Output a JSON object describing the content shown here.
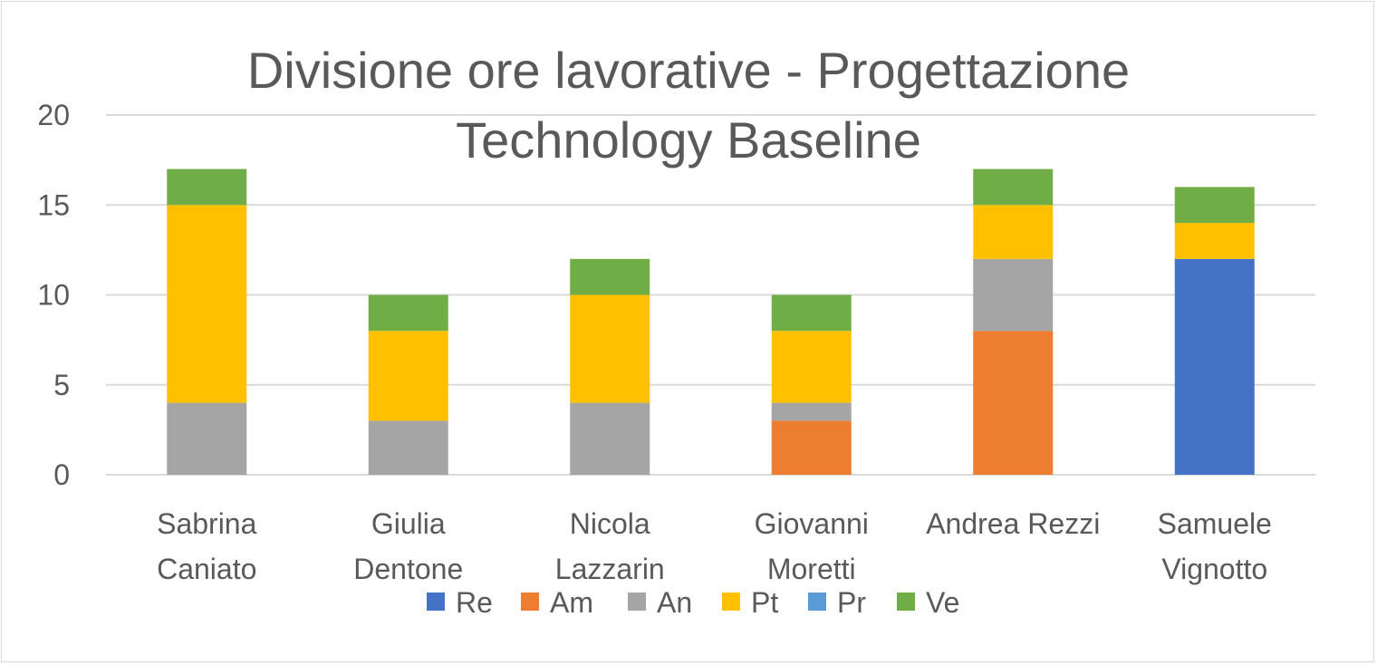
{
  "chart_data": {
    "type": "bar",
    "stacked": true,
    "title_lines": [
      "Divisione ore lavorative - Progettazione",
      "Technology Baseline"
    ],
    "categories": [
      [
        "Sabrina",
        "Caniato"
      ],
      [
        "Giulia",
        "Dentone"
      ],
      [
        "Nicola",
        "Lazzarin"
      ],
      [
        "Giovanni",
        "Moretti"
      ],
      [
        "Andrea Rezzi"
      ],
      [
        "Samuele",
        "Vignotto"
      ]
    ],
    "series": [
      {
        "name": "Re",
        "color": "#4472c4",
        "values": [
          0,
          0,
          0,
          0,
          0,
          12
        ]
      },
      {
        "name": "Am",
        "color": "#ed7d31",
        "values": [
          0,
          0,
          0,
          3,
          8,
          0
        ]
      },
      {
        "name": "An",
        "color": "#a5a5a5",
        "values": [
          4,
          3,
          4,
          1,
          4,
          0
        ]
      },
      {
        "name": "Pt",
        "color": "#ffc000",
        "values": [
          11,
          5,
          6,
          4,
          3,
          2
        ]
      },
      {
        "name": "Pr",
        "color": "#5b9bd5",
        "values": [
          0,
          0,
          0,
          0,
          0,
          0
        ]
      },
      {
        "name": "Ve",
        "color": "#70ad47",
        "values": [
          2,
          2,
          2,
          2,
          2,
          2
        ]
      }
    ],
    "yticks": [
      0,
      5,
      10,
      15,
      20
    ],
    "ylim": [
      0,
      20
    ],
    "grid": true,
    "legend_position": "bottom"
  }
}
